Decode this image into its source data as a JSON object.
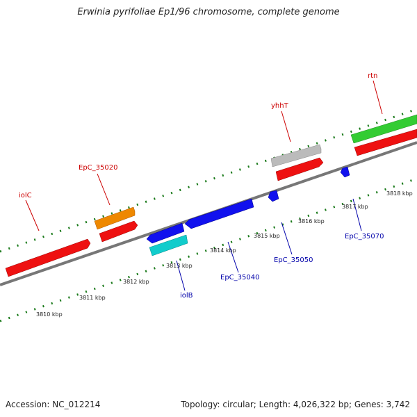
{
  "title": "Erwinia pyrifoliae Ep1/96 chromosome, complete genome",
  "accession": "Accession: NC_012214",
  "summary": "Topology: circular; Length: 4,026,322 bp; Genes: 3,742",
  "colors": {
    "backbone": "#777777",
    "tick": "#1a7a1a",
    "label_red": "#cc0000",
    "label_blue": "#0000aa",
    "cds_red": "#ee1111",
    "cds_orange": "#ee8800",
    "cds_grey": "#bbbbbb",
    "cds_green": "#33cc33",
    "cds_blue": "#1111ee",
    "cds_cyan": "#11cccc"
  },
  "scale_labels": [
    "3810 kbp",
    "3811 kbp",
    "3812 kbp",
    "3813 kbp",
    "3814 kbp",
    "3815 kbp",
    "3816 kbp",
    "3817 kbp",
    "3818 kbp"
  ],
  "upper_labels": [
    "iolC",
    "EpC_35020",
    "yhhT",
    "rtn"
  ],
  "lower_labels": [
    "iolB",
    "EpC_35040",
    "EpC_35050",
    "EpC_35070"
  ]
}
